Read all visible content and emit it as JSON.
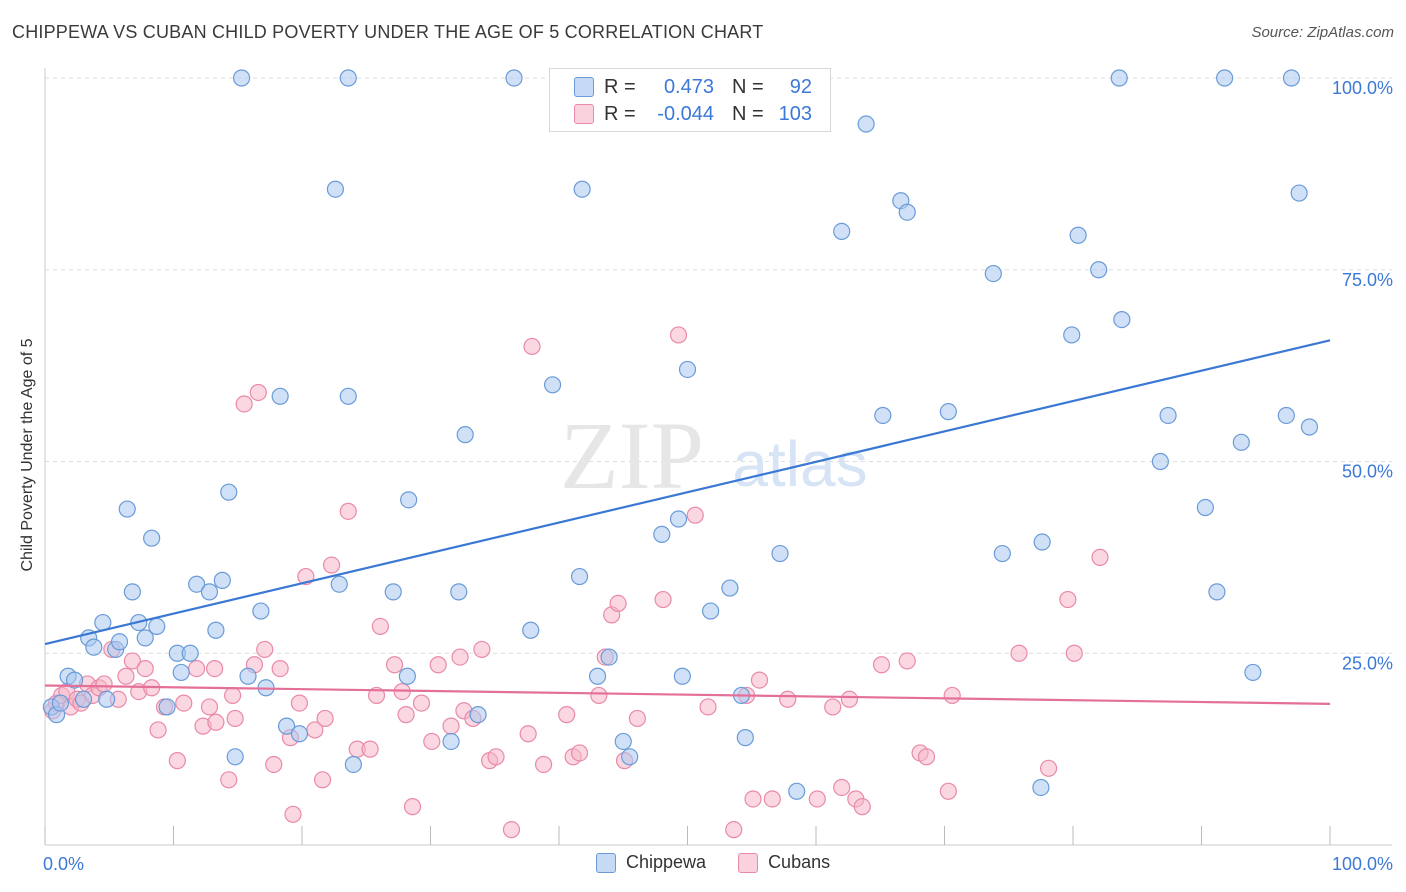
{
  "header": {
    "title": "CHIPPEWA VS CUBAN CHILD POVERTY UNDER THE AGE OF 5 CORRELATION CHART",
    "source": "Source: ZipAtlas.com"
  },
  "watermark": {
    "zip": "ZIP",
    "atlas": "atlas"
  },
  "legend_top": {
    "rows": [
      {
        "r_label": "R =",
        "r_value": "0.473",
        "n_label": "N =",
        "n_value": "92",
        "color": "#a9c8f0"
      },
      {
        "r_label": "R =",
        "r_value": "-0.044",
        "n_label": "N =",
        "n_value": "103",
        "color": "#f6b6c8"
      }
    ]
  },
  "legend_bottom": {
    "items": [
      {
        "label": "Chippewa",
        "color": "#a9c8f0"
      },
      {
        "label": "Cubans",
        "color": "#f6b6c8"
      }
    ]
  },
  "colors": {
    "chippewa_fill": "#a9c8f0",
    "chippewa_stroke": "#6a9bd8",
    "chippewa_line": "#3a78d4",
    "cubans_fill": "#f6b6c8",
    "cubans_stroke": "#e98aa8",
    "cubans_line": "#e46f98",
    "tick_label": "#3c78d8",
    "grid": "#dddddd"
  },
  "chart_data": {
    "type": "scatter",
    "title": "CHIPPEWA VS CUBAN CHILD POVERTY UNDER THE AGE OF 5 CORRELATION CHART",
    "xlabel": "",
    "ylabel": "Child Poverty Under the Age of 5",
    "xlim": [
      0,
      100
    ],
    "ylim": [
      0,
      100
    ],
    "x_tick_labels": [
      "0.0%",
      "100.0%"
    ],
    "y_tick_labels": [
      "25.0%",
      "50.0%",
      "75.0%",
      "100.0%"
    ],
    "y_ticks": [
      25,
      50,
      75,
      100
    ],
    "grid": true,
    "legend_position": "top-center",
    "series": [
      {
        "name": "Chippewa",
        "trend": {
          "x": [
            0,
            100
          ],
          "y": [
            26.2,
            65.8
          ]
        },
        "points": [
          [
            0.5,
            18.0
          ],
          [
            0.9,
            17.0
          ],
          [
            1.2,
            18.5
          ],
          [
            1.8,
            22.0
          ],
          [
            2.3,
            21.5
          ],
          [
            3.0,
            19.0
          ],
          [
            3.4,
            27.0
          ],
          [
            3.8,
            25.8
          ],
          [
            4.5,
            29.0
          ],
          [
            4.8,
            19.0
          ],
          [
            5.5,
            25.5
          ],
          [
            5.8,
            26.5
          ],
          [
            6.4,
            43.8
          ],
          [
            6.8,
            33.0
          ],
          [
            7.3,
            29.0
          ],
          [
            7.8,
            27.0
          ],
          [
            8.3,
            40.0
          ],
          [
            8.7,
            28.5
          ],
          [
            9.5,
            18.0
          ],
          [
            10.3,
            25.0
          ],
          [
            10.6,
            22.5
          ],
          [
            11.3,
            25.0
          ],
          [
            11.8,
            34.0
          ],
          [
            12.8,
            33.0
          ],
          [
            13.3,
            28.0
          ],
          [
            13.8,
            34.5
          ],
          [
            14.3,
            46.0
          ],
          [
            14.8,
            11.5
          ],
          [
            15.3,
            100
          ],
          [
            15.8,
            22.0
          ],
          [
            16.8,
            30.5
          ],
          [
            17.2,
            20.5
          ],
          [
            18.3,
            58.5
          ],
          [
            18.8,
            15.5
          ],
          [
            19.8,
            14.5
          ],
          [
            22.6,
            85.5
          ],
          [
            22.9,
            34.0
          ],
          [
            23.6,
            100
          ],
          [
            23.6,
            58.5
          ],
          [
            24.0,
            10.5
          ],
          [
            27.1,
            33.0
          ],
          [
            28.2,
            22.0
          ],
          [
            28.3,
            45.0
          ],
          [
            31.6,
            13.5
          ],
          [
            32.2,
            33.0
          ],
          [
            32.7,
            53.5
          ],
          [
            33.7,
            17.0
          ],
          [
            36.5,
            100
          ],
          [
            37.8,
            28.0
          ],
          [
            39.5,
            60.0
          ],
          [
            41.6,
            35.0
          ],
          [
            41.8,
            85.5
          ],
          [
            43.0,
            22.0
          ],
          [
            43.9,
            24.5
          ],
          [
            45.0,
            13.5
          ],
          [
            45.5,
            11.5
          ],
          [
            48.0,
            40.5
          ],
          [
            49.3,
            42.5
          ],
          [
            49.6,
            22.0
          ],
          [
            50.0,
            62.0
          ],
          [
            51.8,
            30.5
          ],
          [
            53.3,
            33.5
          ],
          [
            54.2,
            19.5
          ],
          [
            54.5,
            14.0
          ],
          [
            57.2,
            38.0
          ],
          [
            58.5,
            7.0
          ],
          [
            62.0,
            80.0
          ],
          [
            63.9,
            94.0
          ],
          [
            65.2,
            56.0
          ],
          [
            66.6,
            84.0
          ],
          [
            67.1,
            82.5
          ],
          [
            70.3,
            56.5
          ],
          [
            73.8,
            74.5
          ],
          [
            74.5,
            38.0
          ],
          [
            77.5,
            7.5
          ],
          [
            77.6,
            39.5
          ],
          [
            79.9,
            66.5
          ],
          [
            80.4,
            79.5
          ],
          [
            82.0,
            75.0
          ],
          [
            83.6,
            100
          ],
          [
            83.8,
            68.5
          ],
          [
            86.8,
            50.0
          ],
          [
            87.4,
            56.0
          ],
          [
            90.3,
            44.0
          ],
          [
            91.2,
            33.0
          ],
          [
            91.8,
            100
          ],
          [
            93.1,
            52.5
          ],
          [
            94.0,
            22.5
          ],
          [
            96.6,
            56.0
          ],
          [
            97.0,
            100
          ],
          [
            97.6,
            85.0
          ],
          [
            98.4,
            54.5
          ]
        ]
      },
      {
        "name": "Cubans",
        "trend": {
          "x": [
            0,
            100
          ],
          "y": [
            20.8,
            18.4
          ]
        },
        "points": [
          [
            0.6,
            17.5
          ],
          [
            0.9,
            18.5
          ],
          [
            1.3,
            19.5
          ],
          [
            1.7,
            20.0
          ],
          [
            2.0,
            18.0
          ],
          [
            2.5,
            19.0
          ],
          [
            2.8,
            18.5
          ],
          [
            3.3,
            21.0
          ],
          [
            3.7,
            19.5
          ],
          [
            4.2,
            20.5
          ],
          [
            4.6,
            21.0
          ],
          [
            5.2,
            25.5
          ],
          [
            5.7,
            19.0
          ],
          [
            6.3,
            22.0
          ],
          [
            6.8,
            24.0
          ],
          [
            7.3,
            20.0
          ],
          [
            7.8,
            23.0
          ],
          [
            8.3,
            20.5
          ],
          [
            8.8,
            15.0
          ],
          [
            9.3,
            18.0
          ],
          [
            10.3,
            11.0
          ],
          [
            10.8,
            18.5
          ],
          [
            11.8,
            23.0
          ],
          [
            12.3,
            15.5
          ],
          [
            12.8,
            18.0
          ],
          [
            13.2,
            23.0
          ],
          [
            13.3,
            16.0
          ],
          [
            14.3,
            8.5
          ],
          [
            14.6,
            19.5
          ],
          [
            14.8,
            16.5
          ],
          [
            15.5,
            57.5
          ],
          [
            16.3,
            23.5
          ],
          [
            16.6,
            59.0
          ],
          [
            17.1,
            25.5
          ],
          [
            17.8,
            10.5
          ],
          [
            18.3,
            23.0
          ],
          [
            19.1,
            14.0
          ],
          [
            19.3,
            4.0
          ],
          [
            19.8,
            18.5
          ],
          [
            20.3,
            35.0
          ],
          [
            21.0,
            15.0
          ],
          [
            21.6,
            8.5
          ],
          [
            21.8,
            16.5
          ],
          [
            22.3,
            36.5
          ],
          [
            23.6,
            43.5
          ],
          [
            24.3,
            12.5
          ],
          [
            25.3,
            12.5
          ],
          [
            25.8,
            19.5
          ],
          [
            26.1,
            28.5
          ],
          [
            27.2,
            23.5
          ],
          [
            27.8,
            20.0
          ],
          [
            28.1,
            17.0
          ],
          [
            28.6,
            5.0
          ],
          [
            29.3,
            18.5
          ],
          [
            30.1,
            13.5
          ],
          [
            30.6,
            23.5
          ],
          [
            31.6,
            15.5
          ],
          [
            32.3,
            24.5
          ],
          [
            32.6,
            17.5
          ],
          [
            33.3,
            16.5
          ],
          [
            34.0,
            25.5
          ],
          [
            34.6,
            11.0
          ],
          [
            35.1,
            11.5
          ],
          [
            36.3,
            2.0
          ],
          [
            37.6,
            14.5
          ],
          [
            37.9,
            65.0
          ],
          [
            38.8,
            10.5
          ],
          [
            40.6,
            17.0
          ],
          [
            41.1,
            11.5
          ],
          [
            41.6,
            12.0
          ],
          [
            43.1,
            19.5
          ],
          [
            43.6,
            24.5
          ],
          [
            44.1,
            30.0
          ],
          [
            44.6,
            31.5
          ],
          [
            45.1,
            11.0
          ],
          [
            46.1,
            16.5
          ],
          [
            48.1,
            32.0
          ],
          [
            49.3,
            66.5
          ],
          [
            50.6,
            43.0
          ],
          [
            51.6,
            18.0
          ],
          [
            53.6,
            2.0
          ],
          [
            54.6,
            19.5
          ],
          [
            55.1,
            6.0
          ],
          [
            55.6,
            21.5
          ],
          [
            56.6,
            6.0
          ],
          [
            57.8,
            19.0
          ],
          [
            60.1,
            6.0
          ],
          [
            61.3,
            18.0
          ],
          [
            62.0,
            7.5
          ],
          [
            62.6,
            19.0
          ],
          [
            63.1,
            6.0
          ],
          [
            63.6,
            5.0
          ],
          [
            65.1,
            23.5
          ],
          [
            67.1,
            24.0
          ],
          [
            68.1,
            12.0
          ],
          [
            68.6,
            11.5
          ],
          [
            70.3,
            7.0
          ],
          [
            70.6,
            19.5
          ],
          [
            75.8,
            25.0
          ],
          [
            79.6,
            32.0
          ],
          [
            80.1,
            25.0
          ],
          [
            82.1,
            37.5
          ],
          [
            78.1,
            10.0
          ]
        ]
      }
    ]
  }
}
